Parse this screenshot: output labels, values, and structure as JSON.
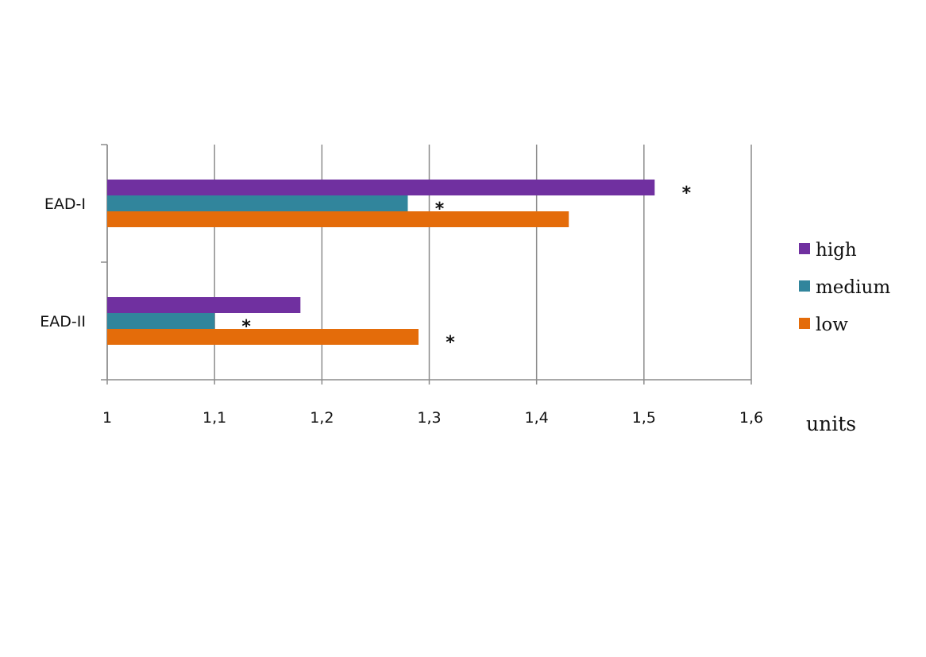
{
  "chart_data": {
    "type": "bar",
    "orientation": "horizontal",
    "categories": [
      "EAD-I",
      "EAD-II"
    ],
    "series": [
      {
        "name": "high",
        "color": "#7030A0",
        "values": [
          1.51,
          1.18
        ]
      },
      {
        "name": "medium",
        "color": "#31859C",
        "values": [
          1.28,
          1.1
        ]
      },
      {
        "name": "low",
        "color": "#E46C0A",
        "values": [
          1.43,
          1.29
        ]
      }
    ],
    "xlim": [
      1,
      1.6
    ],
    "x_ticks": [
      "1",
      "1,1",
      "1,2",
      "1,3",
      "1,4",
      "1,5",
      "1,6"
    ],
    "xlabel": "units",
    "grid": "vertical",
    "legend_position": "right",
    "annotations": [
      {
        "text": "*",
        "category": "EAD-I",
        "series": "high"
      },
      {
        "text": "*",
        "category": "EAD-I",
        "series": "medium"
      },
      {
        "text": "*",
        "category": "EAD-II",
        "series": "medium"
      },
      {
        "text": "*",
        "category": "EAD-II",
        "series": "low"
      }
    ]
  }
}
